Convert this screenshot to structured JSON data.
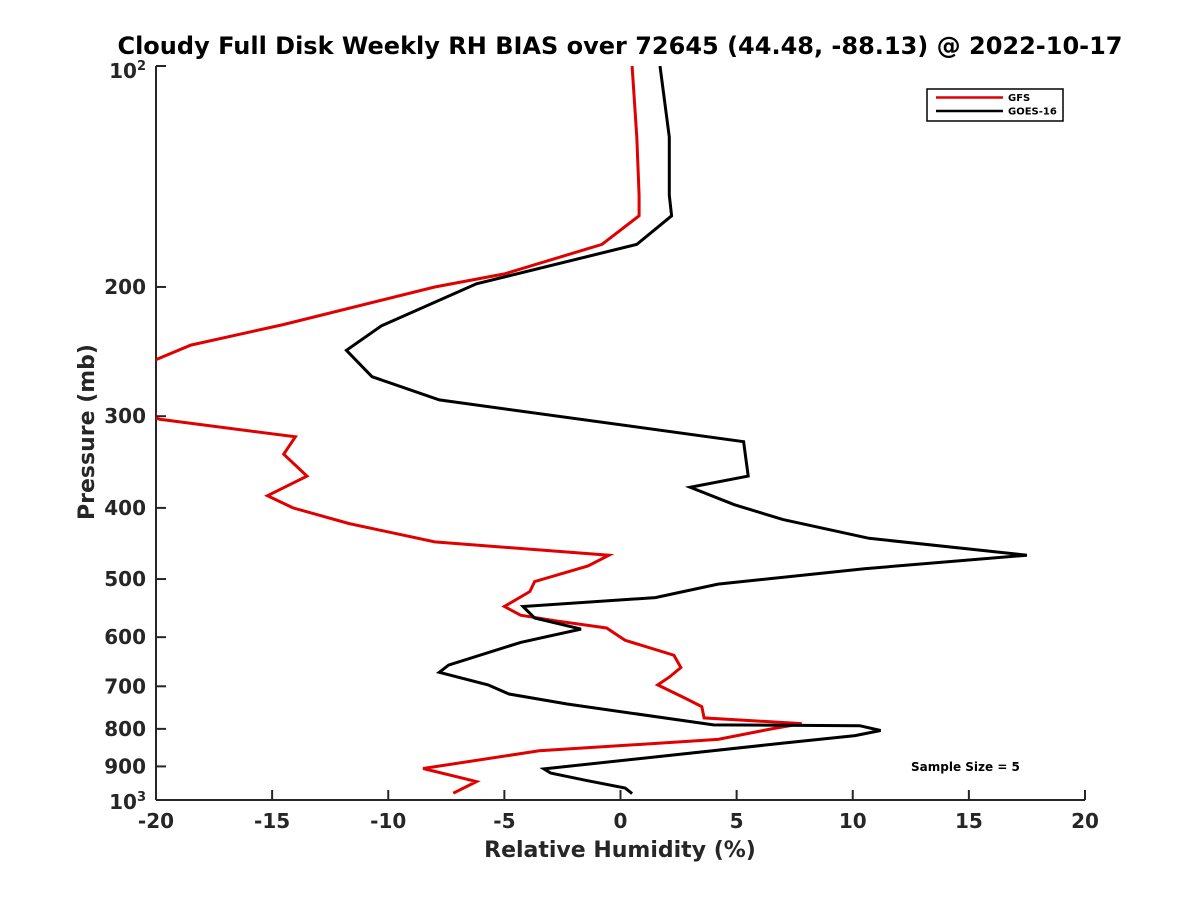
{
  "chart_data": {
    "type": "line",
    "title": "Cloudy Full Disk Weekly RH BIAS over 72645 (44.48, -88.13) @ 2022-10-17",
    "xlabel": "Relative Humidity (%)",
    "ylabel": "Pressure (mb)",
    "xlim": [
      -20,
      20
    ],
    "ylim": [
      100,
      1000
    ],
    "y_scale": "log",
    "y_reversed": true,
    "x_ticks": [
      -20,
      -15,
      -10,
      -5,
      0,
      5,
      10,
      15,
      20
    ],
    "x_tick_labels": [
      "-20",
      "-15",
      "-10",
      "-5",
      "0",
      "5",
      "10",
      "15",
      "20"
    ],
    "y_ticks": [
      200,
      300,
      400,
      500,
      600,
      700,
      800,
      900
    ],
    "y_tick_labels": [
      "200",
      "300",
      "400",
      "500",
      "600",
      "700",
      "800",
      "900"
    ],
    "y_top_label": {
      "base": "10",
      "exp": "2"
    },
    "y_bottom_label": {
      "base": "10",
      "exp": "3"
    },
    "grid": false,
    "legend_position": "top-right",
    "annotation": "Sample Size = 5",
    "series": [
      {
        "name": "GFS",
        "color": "#e00000",
        "points": [
          [
            0.5,
            100
          ],
          [
            0.7,
            125
          ],
          [
            0.8,
            150
          ],
          [
            0.8,
            160
          ],
          [
            -0.8,
            175
          ],
          [
            -5,
            192
          ],
          [
            -8,
            200
          ],
          [
            -14.5,
            225
          ],
          [
            -18.5,
            240
          ],
          [
            -20.5,
            255
          ],
          [
            -20,
            302
          ],
          [
            -19.8,
            303
          ],
          [
            -14,
            320
          ],
          [
            -14.5,
            338
          ],
          [
            -13.5,
            362
          ],
          [
            -15.2,
            385
          ],
          [
            -14.1,
            400
          ],
          [
            -11.7,
            420
          ],
          [
            -8,
            445
          ],
          [
            -0.5,
            464
          ],
          [
            -1.4,
            480
          ],
          [
            -3.7,
            504
          ],
          [
            -3.9,
            520
          ],
          [
            -5,
            545
          ],
          [
            -4.3,
            560
          ],
          [
            -2.8,
            570
          ],
          [
            -0.6,
            583
          ],
          [
            0.2,
            606
          ],
          [
            2.3,
            635
          ],
          [
            2.6,
            660
          ],
          [
            2.1,
            680
          ],
          [
            1.6,
            697
          ],
          [
            2.8,
            727
          ],
          [
            3.5,
            746
          ],
          [
            3.6,
            773
          ],
          [
            7.8,
            787
          ],
          [
            6.5,
            800
          ],
          [
            4.2,
            827
          ],
          [
            -3.5,
            857
          ],
          [
            -8.5,
            906
          ],
          [
            -6.2,
            944
          ],
          [
            -7.2,
            979
          ]
        ]
      },
      {
        "name": "GOES-16",
        "color": "#000000",
        "points": [
          [
            1.7,
            100
          ],
          [
            2.1,
            125
          ],
          [
            2.1,
            150
          ],
          [
            2.2,
            160
          ],
          [
            0.7,
            175
          ],
          [
            -6.2,
            198
          ],
          [
            -10.3,
            226
          ],
          [
            -11.8,
            244
          ],
          [
            -10.7,
            265
          ],
          [
            -7.8,
            285
          ],
          [
            5.3,
            325
          ],
          [
            5.4,
            343
          ],
          [
            5.5,
            362
          ],
          [
            3,
            375
          ],
          [
            4.9,
            396
          ],
          [
            7,
            415
          ],
          [
            10.7,
            440
          ],
          [
            17.5,
            464
          ],
          [
            10.5,
            484
          ],
          [
            4.2,
            508
          ],
          [
            1.5,
            530
          ],
          [
            -4.2,
            545
          ],
          [
            -3.7,
            565
          ],
          [
            -1.7,
            585
          ],
          [
            -4.3,
            610
          ],
          [
            -7.4,
            655
          ],
          [
            -7.8,
            670
          ],
          [
            -5.7,
            697
          ],
          [
            -4.8,
            717
          ],
          [
            -2.3,
            740
          ],
          [
            4,
            790
          ],
          [
            10.3,
            792
          ],
          [
            11.2,
            804
          ],
          [
            10.1,
            817
          ],
          [
            7.1,
            836
          ],
          [
            -3.3,
            907
          ],
          [
            -3,
            919
          ],
          [
            -1.5,
            940
          ],
          [
            0.2,
            963
          ],
          [
            0.5,
            980
          ]
        ]
      }
    ]
  }
}
